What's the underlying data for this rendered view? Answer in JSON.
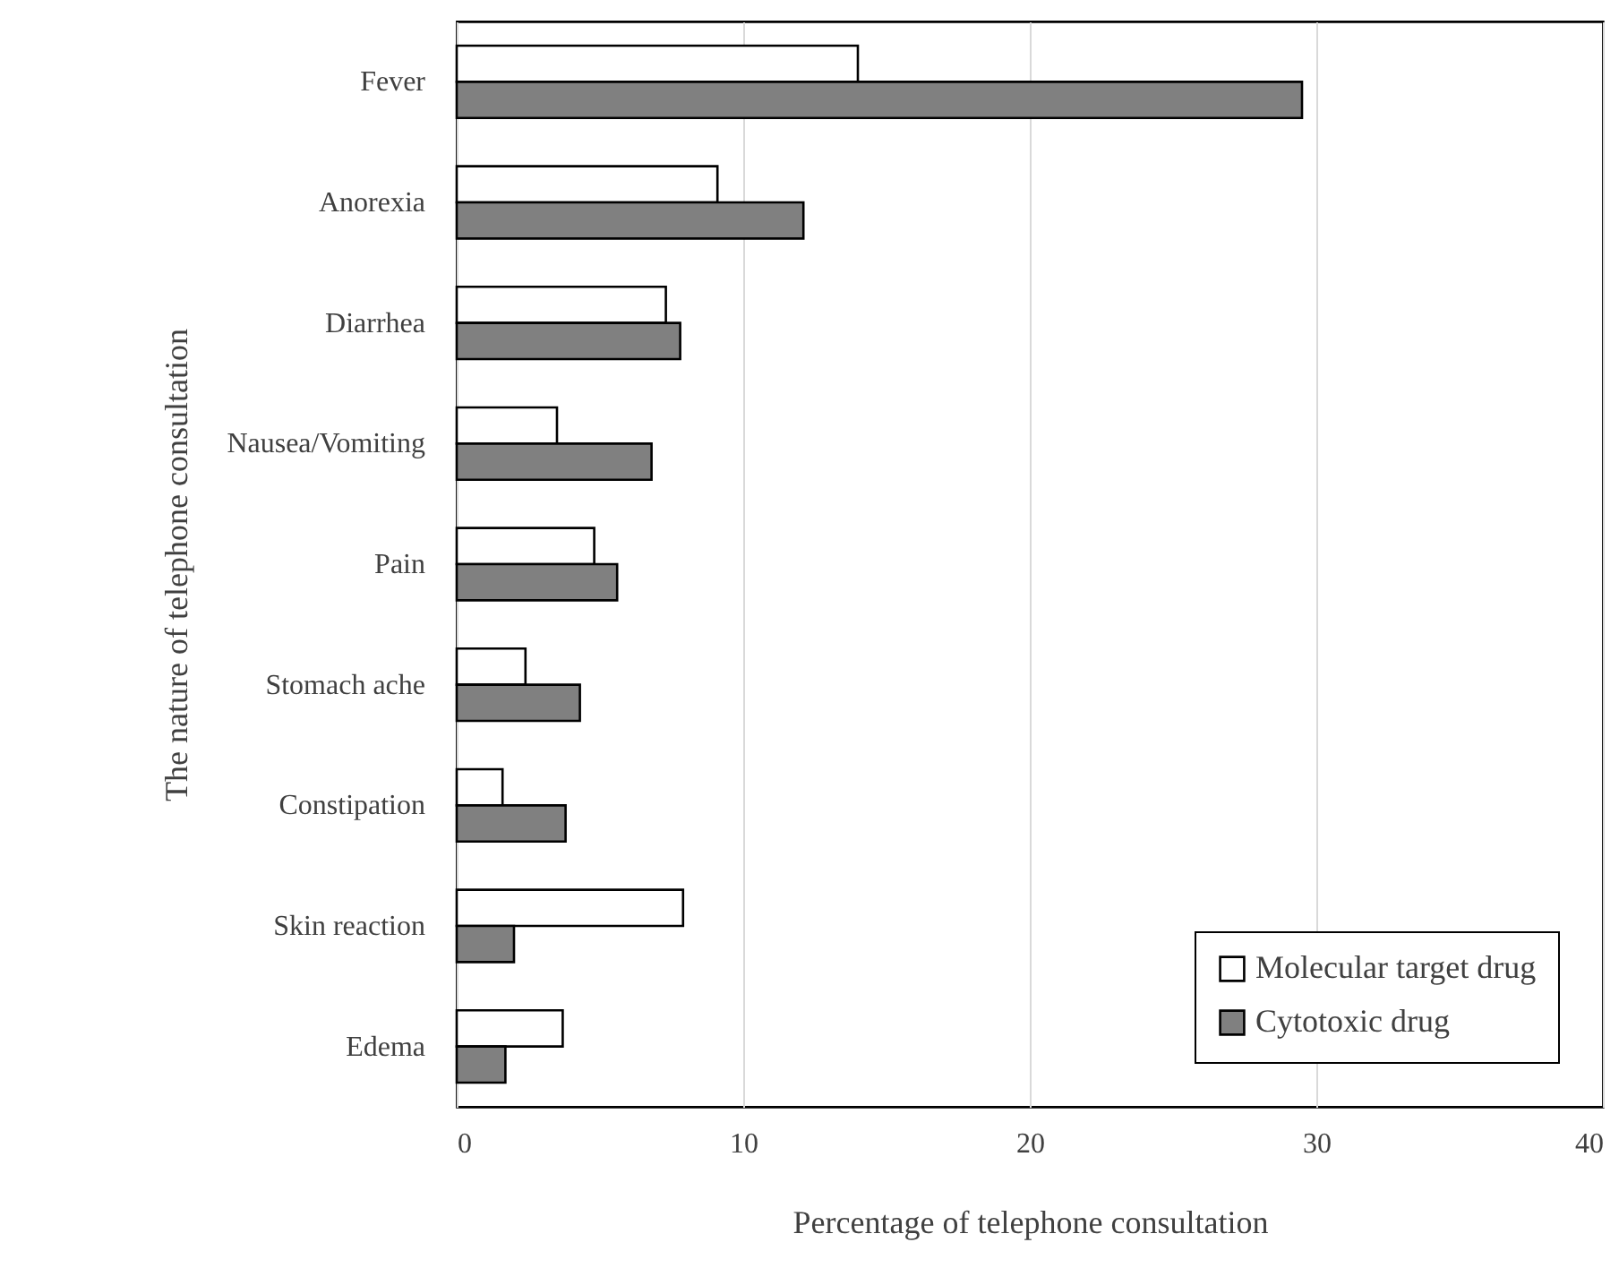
{
  "chart_data": {
    "type": "bar",
    "orientation": "horizontal",
    "xlabel": "Percentage of telephone consultation",
    "ylabel": "The nature of telephone consultation",
    "categories": [
      "Fever",
      "Anorexia",
      "Diarrhea",
      "Nausea/Vomiting",
      "Pain",
      "Stomach ache",
      "Constipation",
      "Skin reaction",
      "Edema"
    ],
    "series": [
      {
        "name": "Molecular target drug",
        "color": "#ffffff",
        "values": [
          14.0,
          9.1,
          7.3,
          3.5,
          4.8,
          2.4,
          1.6,
          7.9,
          3.7
        ]
      },
      {
        "name": "Cytotoxic drug",
        "color": "#808080",
        "values": [
          29.5,
          12.1,
          7.8,
          6.8,
          5.6,
          4.3,
          3.8,
          2.0,
          1.7
        ]
      }
    ],
    "xlim": [
      0,
      40
    ],
    "xticks": [
      0,
      10,
      20,
      30,
      40
    ],
    "grid": "x",
    "legend": "bottom right"
  }
}
